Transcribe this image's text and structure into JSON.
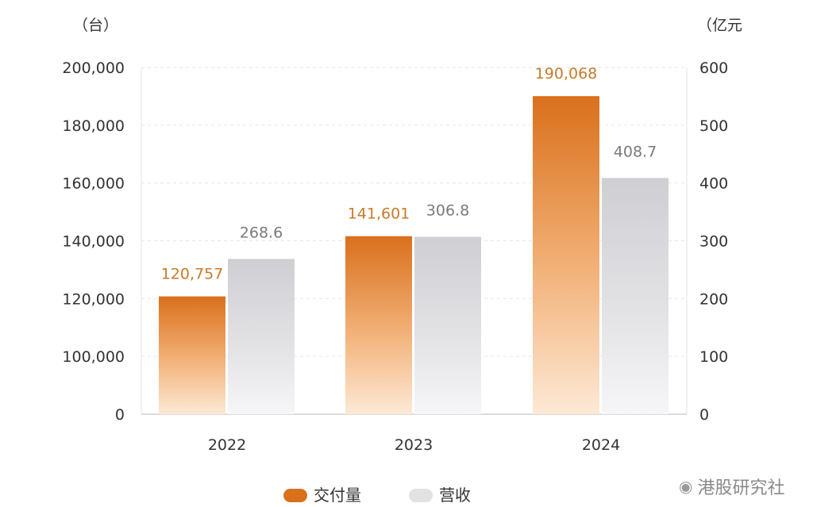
{
  "chart_data": {
    "type": "bar",
    "categories": [
      "2022",
      "2023",
      "2024"
    ],
    "series": [
      {
        "name": "交付量",
        "axis": "left",
        "values": [
          120757,
          141601,
          190068
        ],
        "labels": [
          "120,757",
          "141,601",
          "190,068"
        ],
        "color": "#d9701c",
        "label_color": "#c87a2a"
      },
      {
        "name": "营收",
        "axis": "right",
        "values": [
          268.6,
          306.8,
          408.7
        ],
        "labels": [
          "268.6",
          "306.8",
          "408.7"
        ],
        "color": "#d2d2d6",
        "label_color": "#7a7a7a"
      }
    ],
    "left_axis": {
      "unit": "（台）",
      "ticks": [
        "0",
        "100,000",
        "120,000",
        "140,000",
        "160,000",
        "180,000",
        "200,000"
      ]
    },
    "right_axis": {
      "unit": "（亿元",
      "ticks": [
        "0",
        "100",
        "200",
        "300",
        "400",
        "500",
        "600"
      ]
    },
    "grid": "dashed-horizontal",
    "legend_position": "bottom"
  },
  "legend": {
    "items": [
      "交付量",
      "营收"
    ]
  },
  "watermark": {
    "text": "港股研究社"
  }
}
